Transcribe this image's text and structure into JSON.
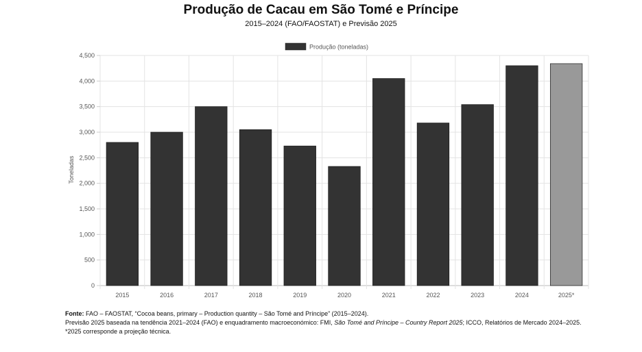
{
  "chart_data": {
    "type": "bar",
    "title": "Produção de Cacau em São Tomé e Príncipe",
    "subtitle": "2015–2024 (FAO/FAOSTAT) e Previsão 2025",
    "ylabel": "Toneladas",
    "xlabel": "",
    "ylim": [
      0,
      4500
    ],
    "yticks": [
      "0",
      "500",
      "1,000",
      "1,500",
      "2,000",
      "2,500",
      "3,000",
      "3,500",
      "4,000",
      "4,500"
    ],
    "ytick_values": [
      0,
      500,
      1000,
      1500,
      2000,
      2500,
      3000,
      3500,
      4000,
      4500
    ],
    "categories": [
      "2015",
      "2016",
      "2017",
      "2018",
      "2019",
      "2020",
      "2021",
      "2022",
      "2023",
      "2024",
      "2025*"
    ],
    "series": [
      {
        "name": "Produção (toneladas)",
        "values": [
          2800,
          3000,
          3500,
          3050,
          2730,
          2330,
          4050,
          3180,
          3540,
          4300,
          4340
        ]
      }
    ],
    "bar_colors": [
      "#333333",
      "#333333",
      "#333333",
      "#333333",
      "#333333",
      "#333333",
      "#333333",
      "#333333",
      "#333333",
      "#333333",
      "#999999"
    ],
    "legend_color": "#333333",
    "grid": true,
    "legend_position": "top-center"
  },
  "footer": {
    "source_label": "Fonte:",
    "source_text": " FAO – FAOSTAT, “Cocoa beans, primary – Production quantity – São Tomé and Príncipe” (2015–2024).",
    "line2_a": "Previsão 2025 baseada na tendência 2021–2024 (FAO) e enquadramento macroeconómico: FMI, ",
    "line2_italic": "São Tomé and Príncipe – Country Report 2025",
    "line2_b": "; ICCO, Relatórios de Mercado 2024–2025.",
    "line3": "*2025 corresponde a projeção técnica."
  }
}
